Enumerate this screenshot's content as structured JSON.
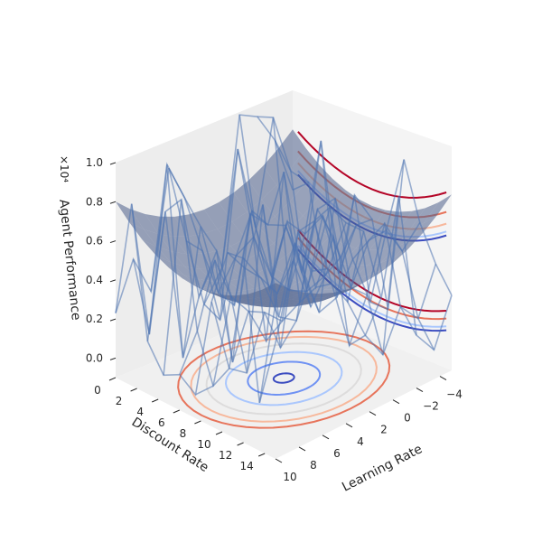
{
  "chart_data": {
    "type": "surface3d",
    "title": "",
    "xlabel": "Learning Rate",
    "ylabel": "Discount Rate",
    "zlabel": "Agent Performance",
    "z_offset_text": "×10⁴",
    "xlim": [
      -5,
      10
    ],
    "ylim": [
      0,
      15
    ],
    "zlim": [
      -0.1,
      1.0
    ],
    "x_ticks": [
      -4,
      -2,
      0,
      2,
      4,
      6,
      8,
      10
    ],
    "x_tick_labels": [
      "−4",
      "−2",
      "0",
      "2",
      "4",
      "6",
      "8",
      "10"
    ],
    "y_ticks": [
      0,
      2,
      4,
      6,
      8,
      10,
      12,
      14
    ],
    "y_tick_labels": [
      "0",
      "2",
      "4",
      "6",
      "8",
      "10",
      "12",
      "14"
    ],
    "z_ticks": [
      0.0,
      0.2,
      0.4,
      0.6,
      0.8,
      1.0
    ],
    "z_tick_labels": [
      "0.0",
      "0.2",
      "0.4",
      "0.6",
      "0.8",
      "1.0"
    ],
    "surface": {
      "description_of_data": "bowl-shaped surface, minimum near centre of grid, rising to edges",
      "center": [
        2.5,
        7.5
      ],
      "z_min": 0.35,
      "z_max": 0.8,
      "color": "#4c5f8a"
    },
    "wireframe": {
      "color": "#4c72b0",
      "noisy_values_range": [
        0.0,
        1.0
      ]
    },
    "contours": {
      "colormap": "coolwarm",
      "levels": 6,
      "colors": [
        "#3b4cc0",
        "#6f92f3",
        "#aac7fd",
        "#dddcdc",
        "#f7b89c",
        "#e7745b",
        "#b40426"
      ]
    },
    "grid": false
  }
}
